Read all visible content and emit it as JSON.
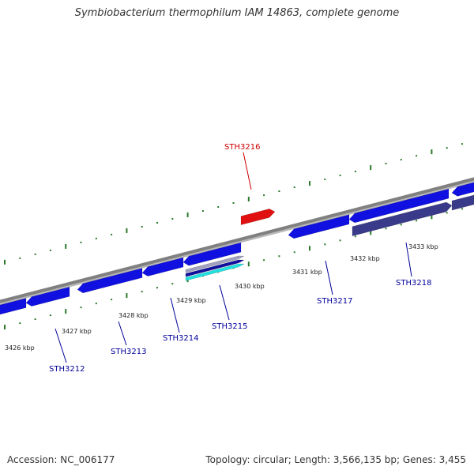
{
  "title": "Symbiobacterium thermophilum IAM 14863, complete genome",
  "accession_text": "Accession: NC_006177",
  "stats_text": "Topology: circular; Length: 3,566,135 bp; Genes: 3,455",
  "colors": {
    "backbone": "#808080",
    "gene_forward": "#1010e0",
    "gene_reverse": "#3a3a8a",
    "highlight": "#e01010",
    "highlight_label": "#cc0000",
    "gene_label": "#000099",
    "tick": "#2a7a2a",
    "rna_cyan": "#20e0e0",
    "pseudo_grey": "#a0a0c0"
  },
  "kbp_ticks": [
    {
      "label": "3426 kbp"
    },
    {
      "label": "3427 kbp"
    },
    {
      "label": "3428 kbp"
    },
    {
      "label": "3429 kbp"
    },
    {
      "label": "3430 kbp"
    },
    {
      "label": "3431 kbp"
    },
    {
      "label": "3432 kbp"
    },
    {
      "label": "3433 kbp"
    }
  ],
  "gene_labels": [
    {
      "name": "STH3212",
      "highlight": false
    },
    {
      "name": "STH3213",
      "highlight": false
    },
    {
      "name": "STH3214",
      "highlight": false
    },
    {
      "name": "STH3215",
      "highlight": false
    },
    {
      "name": "STH3216",
      "highlight": true
    },
    {
      "name": "STH3217",
      "highlight": false
    },
    {
      "name": "STH3218",
      "highlight": false
    }
  ]
}
